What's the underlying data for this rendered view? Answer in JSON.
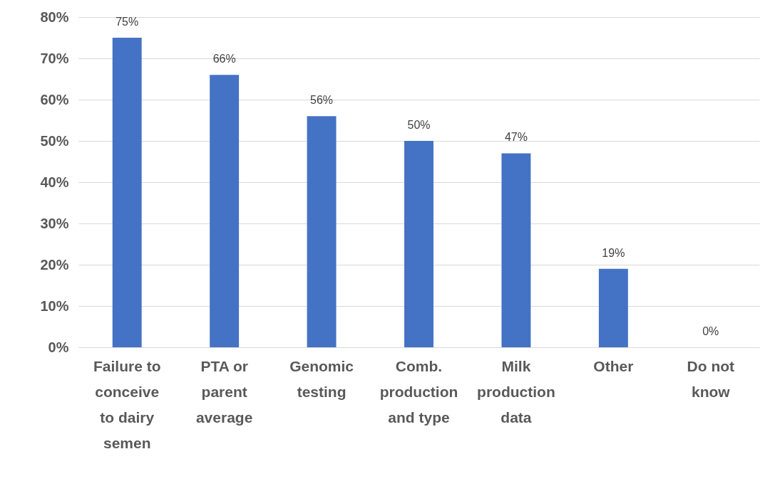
{
  "chart_data": {
    "type": "bar",
    "categories": [
      "Failure to conceive to dairy semen",
      "PTA or parent average",
      "Genomic testing",
      "Comb. production and type",
      "Milk production data",
      "Other",
      "Do not know"
    ],
    "values": [
      75,
      66,
      56,
      50,
      47,
      19,
      0
    ],
    "value_labels": [
      "75%",
      "66%",
      "56%",
      "50%",
      "47%",
      "19%",
      "0%"
    ],
    "color": "#4472c4",
    "ylim": [
      0,
      80
    ],
    "yticks": [
      {
        "value": 0,
        "label": "0%"
      },
      {
        "value": 10,
        "label": "10%"
      },
      {
        "value": 20,
        "label": "20%"
      },
      {
        "value": 30,
        "label": "30%"
      },
      {
        "value": 40,
        "label": "40%"
      },
      {
        "value": 50,
        "label": "50%"
      },
      {
        "value": 60,
        "label": "60%"
      },
      {
        "value": 70,
        "label": "70%"
      },
      {
        "value": 80,
        "label": "80%"
      }
    ],
    "grid": "y"
  }
}
